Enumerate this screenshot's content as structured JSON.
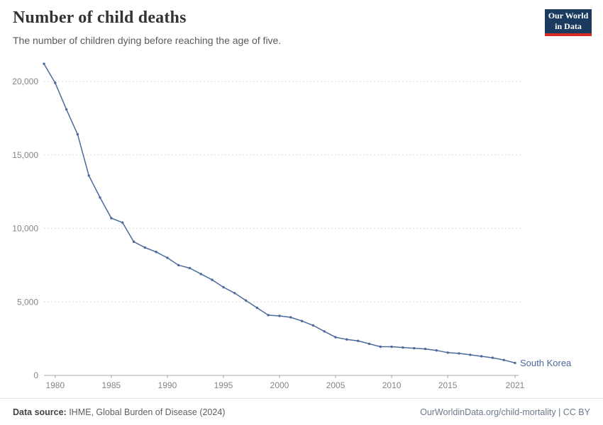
{
  "header": {
    "title": "Number of child deaths",
    "subtitle": "The number of children dying before reaching the age of five.",
    "logo": {
      "line1": "Our World",
      "line2": "in Data"
    }
  },
  "chart_data": {
    "type": "line",
    "title": "Number of child deaths",
    "subtitle": "The number of children dying before reaching the age of five.",
    "entity": "South Korea",
    "line_color": "#4c6a9c",
    "grid": "dashed horizontal",
    "legend_position": "end-of-line label",
    "xlim": [
      1979,
      2021
    ],
    "ylim": [
      0,
      21500
    ],
    "x_ticks": [
      1980,
      1985,
      1990,
      1995,
      2000,
      2005,
      2010,
      2015,
      2021
    ],
    "y_ticks": [
      0,
      5000,
      10000,
      15000,
      20000
    ],
    "series": [
      {
        "name": "South Korea",
        "color": "#4c6a9c",
        "years": [
          1979,
          1980,
          1981,
          1982,
          1983,
          1984,
          1985,
          1986,
          1987,
          1988,
          1989,
          1990,
          1991,
          1992,
          1993,
          1994,
          1995,
          1996,
          1997,
          1998,
          1999,
          2000,
          2001,
          2002,
          2003,
          2004,
          2005,
          2006,
          2007,
          2008,
          2009,
          2010,
          2011,
          2012,
          2013,
          2014,
          2015,
          2016,
          2017,
          2018,
          2019,
          2020,
          2021
        ],
        "values": [
          21200,
          19900,
          18100,
          16400,
          13600,
          12100,
          10700,
          10400,
          9100,
          8700,
          8400,
          8000,
          7500,
          7300,
          6900,
          6500,
          6000,
          5600,
          5100,
          4600,
          4100,
          4050,
          3950,
          3700,
          3400,
          3000,
          2600,
          2450,
          2350,
          2150,
          1950,
          1950,
          1900,
          1850,
          1800,
          1700,
          1550,
          1500,
          1400,
          1300,
          1200,
          1050,
          850
        ]
      }
    ]
  },
  "footer": {
    "source_label": "Data source:",
    "source_text": " IHME, Global Burden of Disease (2024)",
    "credit": "OurWorldinData.org/child-mortality | CC BY"
  }
}
